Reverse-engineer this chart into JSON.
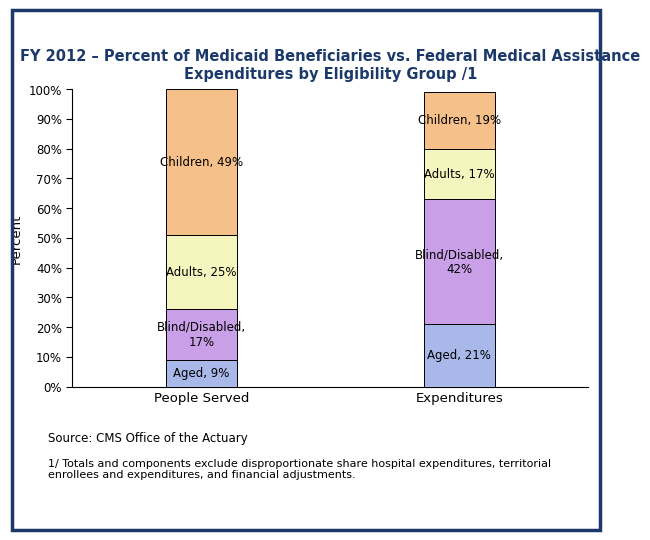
{
  "title": "FY 2012 – Percent of Medicaid Beneficiaries vs. Federal Medical Assistance\nExpenditures by Eligibility Group /1",
  "title_fontsize": 10.5,
  "title_color": "#1B3A6B",
  "ylabel": "Percent",
  "categories": [
    "People Served",
    "Expenditures"
  ],
  "segments": [
    {
      "label": "Aged",
      "values": [
        9,
        21
      ],
      "color": "#A8B8E8"
    },
    {
      "label": "Blind/Disabled",
      "values": [
        17,
        42
      ],
      "color": "#C9A0E8"
    },
    {
      "label": "Adults",
      "values": [
        25,
        17
      ],
      "color": "#F5F5C0"
    },
    {
      "label": "Children",
      "values": [
        49,
        19
      ],
      "color": "#F5C08A"
    }
  ],
  "bar_annotations": [
    {
      "bar": 0,
      "seg": 0,
      "text": "Aged, 9%",
      "va": "center"
    },
    {
      "bar": 0,
      "seg": 1,
      "text": "Blind/Disabled,\n17%",
      "va": "center"
    },
    {
      "bar": 0,
      "seg": 2,
      "text": "Adults, 25%",
      "va": "center"
    },
    {
      "bar": 0,
      "seg": 3,
      "text": "Children, 49%",
      "va": "center"
    },
    {
      "bar": 1,
      "seg": 0,
      "text": "Aged, 21%",
      "va": "center"
    },
    {
      "bar": 1,
      "seg": 1,
      "text": "Blind/Disabled,\n42%",
      "va": "center"
    },
    {
      "bar": 1,
      "seg": 2,
      "text": "Adults, 17%",
      "va": "center"
    },
    {
      "bar": 1,
      "seg": 3,
      "text": "Children, 19%",
      "va": "center"
    }
  ],
  "source_text": "Source: CMS Office of the Actuary",
  "footnote_text": "1/ Totals and components exclude disproportionate share hospital expenditures, territorial\nenrollees and expenditures, and financial adjustments.",
  "bar_width": 0.55,
  "bar_positions": [
    1,
    3
  ],
  "xlim": [
    0,
    4
  ],
  "ylim": [
    0,
    100
  ],
  "yticks": [
    0,
    10,
    20,
    30,
    40,
    50,
    60,
    70,
    80,
    90,
    100
  ],
  "ytick_labels": [
    "0%",
    "10%",
    "20%",
    "30%",
    "40%",
    "50%",
    "60%",
    "70%",
    "80%",
    "90%",
    "100%"
  ],
  "background_color": "#FFFFFF",
  "plot_bg_color": "#FFFFFF",
  "border_color": "#1B3A6B",
  "annotation_fontsize": 8.5,
  "axis_label_fontsize": 9.5,
  "tick_fontsize": 8.5
}
